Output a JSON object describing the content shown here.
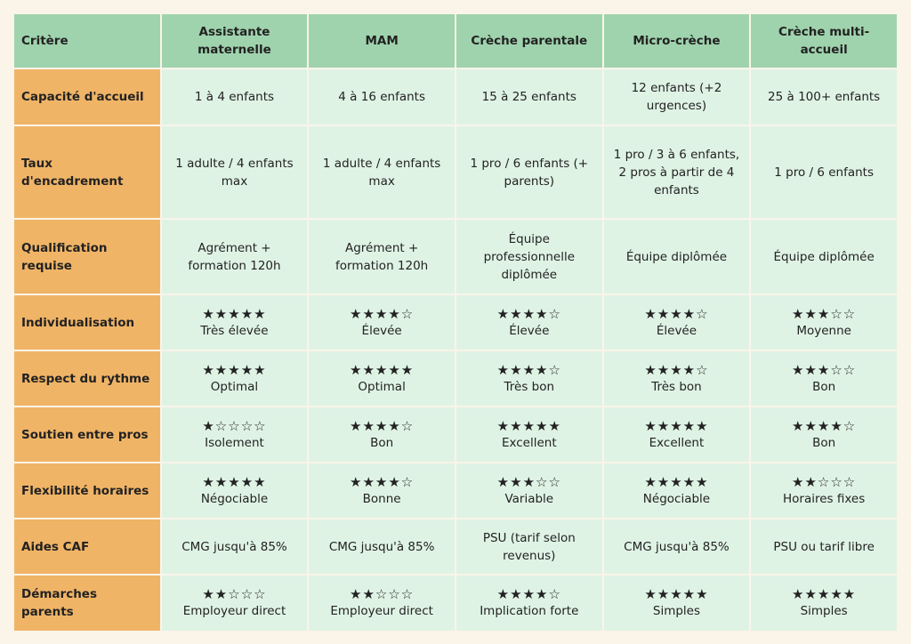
{
  "table": {
    "headers": [
      "Critère",
      "Assistante maternelle",
      "MAM",
      "Crèche parentale",
      "Micro-crèche",
      "Crèche multi-accueil"
    ],
    "rows": [
      {
        "label": "Capacité d'accueil",
        "cells": [
          "1 à 4 enfants",
          "4 à 16 enfants",
          "15 à 25 enfants",
          "12 enfants (+2 urgences)",
          "25 à 100+ enfants"
        ]
      },
      {
        "label": "Taux d'encadrement",
        "cells": [
          "1 adulte / 4 enfants max",
          "1 adulte / 4 enfants max",
          "1 pro / 6 enfants (+ parents)",
          "1 pro / 3 à 6 enfants, 2 pros à partir de 4 enfants",
          "1 pro / 6 enfants"
        ]
      },
      {
        "label": "Qualification requise",
        "cells": [
          "Agrément + formation 120h",
          "Agrément + formation 120h",
          "Équipe professionnelle diplômée",
          "Équipe diplômée",
          "Équipe diplômée"
        ]
      },
      {
        "label": "Individualisation",
        "cells": [
          {
            "stars": "★★★★★",
            "text": "Très élevée"
          },
          {
            "stars": "★★★★☆",
            "text": "Élevée"
          },
          {
            "stars": "★★★★☆",
            "text": "Élevée"
          },
          {
            "stars": "★★★★☆",
            "text": "Élevée"
          },
          {
            "stars": "★★★☆☆",
            "text": "Moyenne"
          }
        ]
      },
      {
        "label": "Respect du rythme",
        "cells": [
          {
            "stars": "★★★★★",
            "text": "Optimal"
          },
          {
            "stars": "★★★★★",
            "text": "Optimal"
          },
          {
            "stars": "★★★★☆",
            "text": "Très bon"
          },
          {
            "stars": "★★★★☆",
            "text": "Très bon"
          },
          {
            "stars": "★★★☆☆",
            "text": "Bon"
          }
        ]
      },
      {
        "label": "Soutien entre pros",
        "cells": [
          {
            "stars": "★☆☆☆☆",
            "text": "Isolement"
          },
          {
            "stars": "★★★★☆",
            "text": "Bon"
          },
          {
            "stars": "★★★★★",
            "text": "Excellent"
          },
          {
            "stars": "★★★★★",
            "text": "Excellent"
          },
          {
            "stars": "★★★★☆",
            "text": "Bon"
          }
        ]
      },
      {
        "label": "Flexibilité horaires",
        "cells": [
          {
            "stars": "★★★★★",
            "text": "Négociable"
          },
          {
            "stars": "★★★★☆",
            "text": "Bonne"
          },
          {
            "stars": "★★★☆☆",
            "text": "Variable"
          },
          {
            "stars": "★★★★★",
            "text": "Négociable"
          },
          {
            "stars": "★★☆☆☆",
            "text": "Horaires fixes"
          }
        ]
      },
      {
        "label": "Aides CAF",
        "cells": [
          "CMG jusqu'à 85%",
          "CMG jusqu'à 85%",
          "PSU (tarif selon revenus)",
          "CMG jusqu'à 85%",
          "PSU ou tarif libre"
        ]
      },
      {
        "label": "Démarches parents",
        "cells": [
          {
            "stars": "★★☆☆☆",
            "text": "Employeur direct"
          },
          {
            "stars": "★★☆☆☆",
            "text": "Employeur direct"
          },
          {
            "stars": "★★★★☆",
            "text": "Implication forte"
          },
          {
            "stars": "★★★★★",
            "text": "Simples"
          },
          {
            "stars": "★★★★★",
            "text": "Simples"
          }
        ]
      }
    ]
  }
}
